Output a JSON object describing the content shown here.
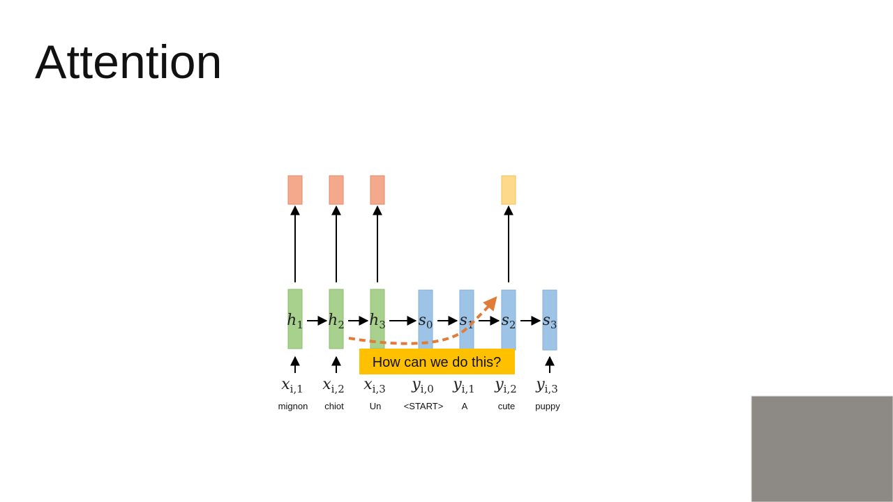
{
  "title": "Attention",
  "nodes": [
    {
      "symbol": "h",
      "subscript": "1"
    },
    {
      "symbol": "h",
      "subscript": "2"
    },
    {
      "symbol": "h",
      "subscript": "3"
    },
    {
      "symbol": "s",
      "subscript": "0"
    },
    {
      "symbol": "s",
      "subscript": "1"
    },
    {
      "symbol": "s",
      "subscript": "2"
    },
    {
      "symbol": "s",
      "subscript": "3"
    }
  ],
  "inputs": [
    {
      "symbol": "x",
      "subscript": "i,1"
    },
    {
      "symbol": "x",
      "subscript": "i,2"
    },
    {
      "symbol": "x",
      "subscript": "i,3"
    },
    {
      "symbol": "y",
      "subscript": "i,0"
    },
    {
      "symbol": "y",
      "subscript": "i,1"
    },
    {
      "symbol": "y",
      "subscript": "i,2"
    },
    {
      "symbol": "y",
      "subscript": "i,3"
    }
  ],
  "words": [
    "mignon",
    "chiot",
    "Un",
    "<START>",
    "A",
    "cute",
    "puppy"
  ],
  "callout": "How can we do this?"
}
